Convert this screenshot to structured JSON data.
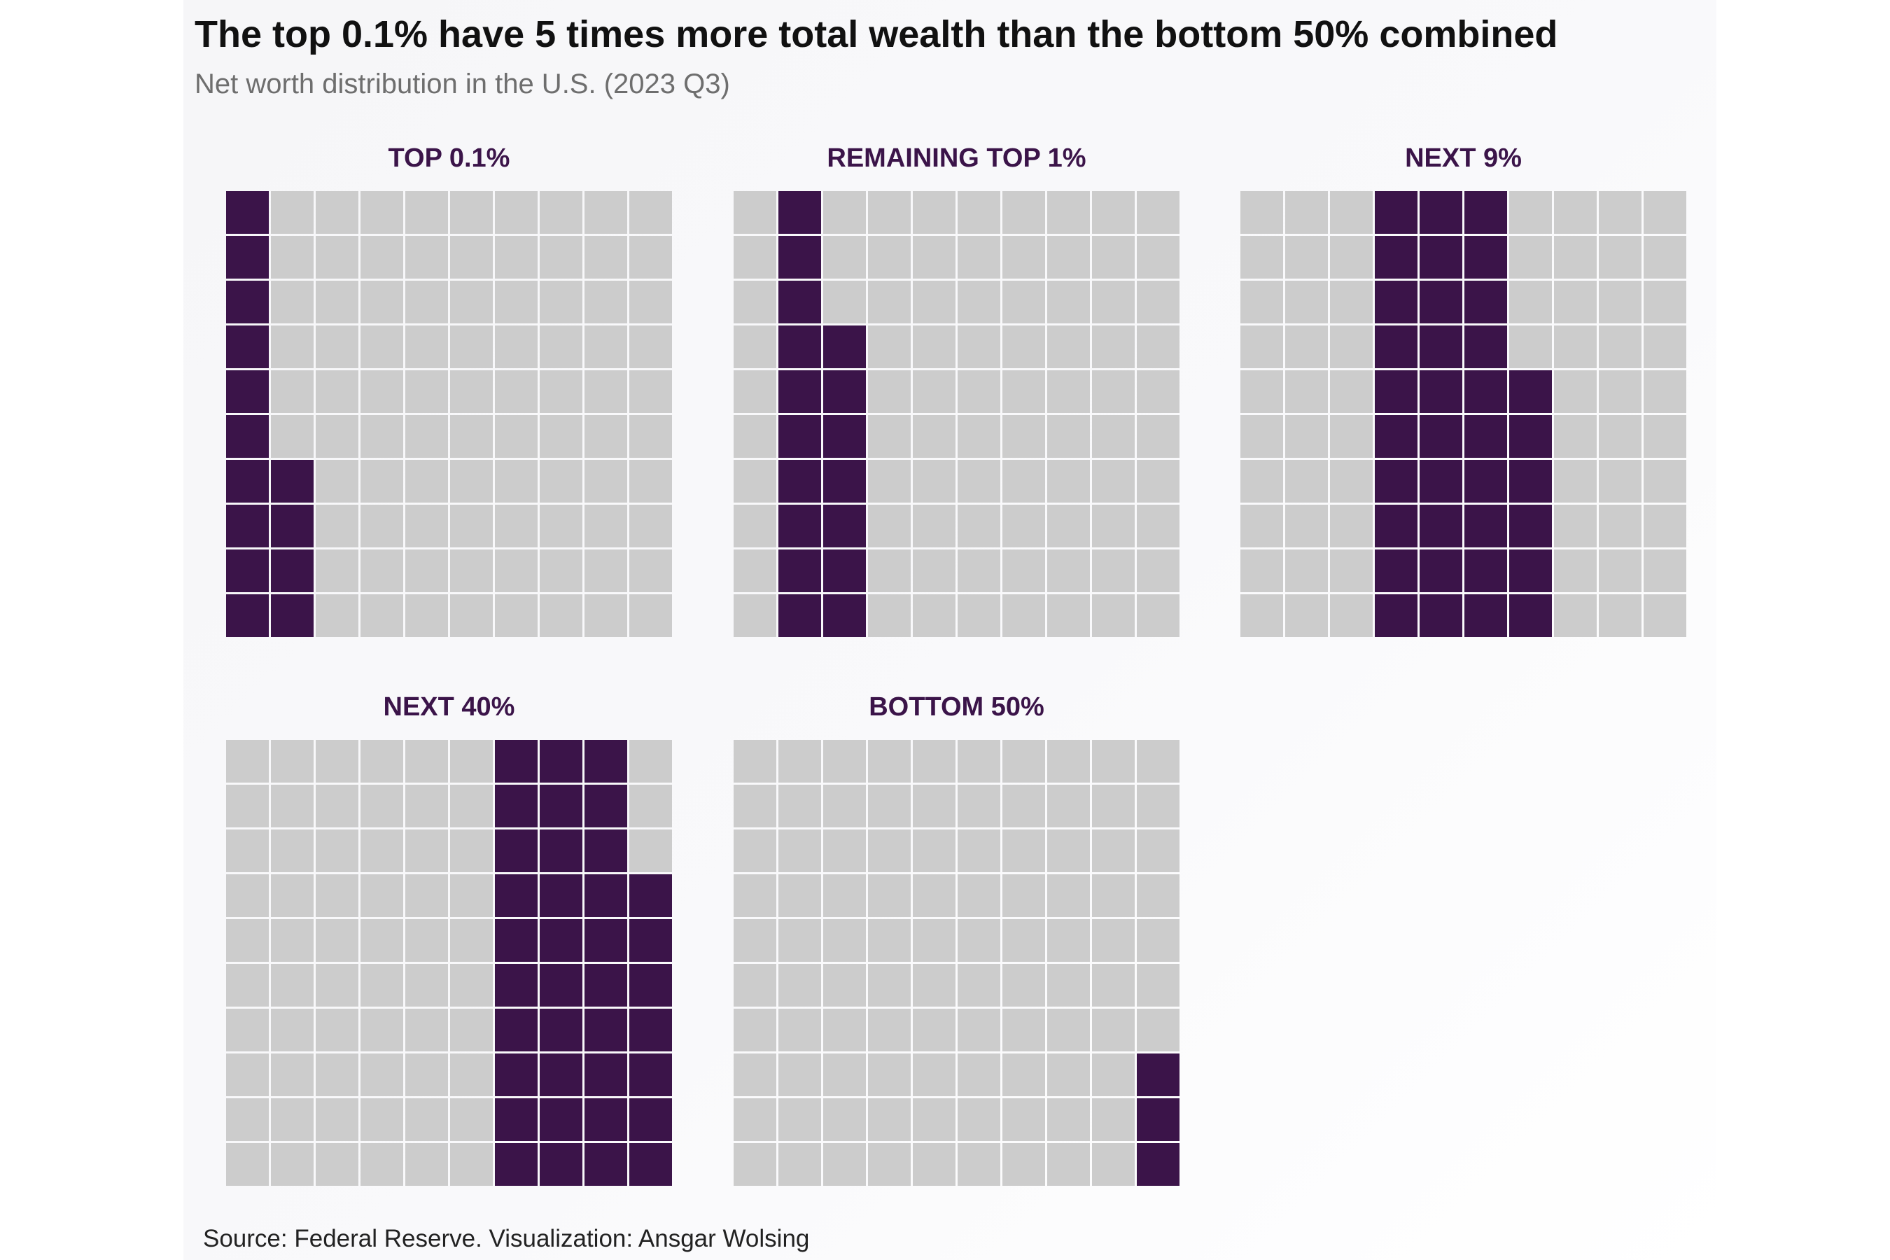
{
  "title": "The top 0.1% have 5 times more total wealth than the bottom 50% combined",
  "subtitle": "Net worth distribution in the U.S. (2023 Q3)",
  "source": "Source: Federal Reserve. Visualization: Ansgar Wolsing",
  "chart_data": {
    "type": "waffle",
    "units_per_panel": 100,
    "grid": [
      10,
      10
    ],
    "filled_color": "#3b1449",
    "empty_color": "#cccccc",
    "panels": [
      {
        "label": "TOP 0.1%",
        "columns": [
          0,
          1
        ],
        "first_unit": 0,
        "filled_units": 14
      },
      {
        "label": "REMAINING TOP 1%",
        "columns": [
          1,
          2,
          3
        ],
        "first_unit": 0,
        "filled_units": 17
      },
      {
        "label": "NEXT 9%",
        "columns": [
          3,
          4,
          5,
          6
        ],
        "first_unit": 0,
        "filled_units": 36
      },
      {
        "label": "NEXT 40%",
        "columns": [
          6,
          7,
          8,
          9
        ],
        "first_unit": 0,
        "filled_units": 37
      },
      {
        "label": "BOTTOM 50%",
        "columns": [
          9
        ],
        "first_unit": 0,
        "filled_units": 3
      }
    ]
  }
}
